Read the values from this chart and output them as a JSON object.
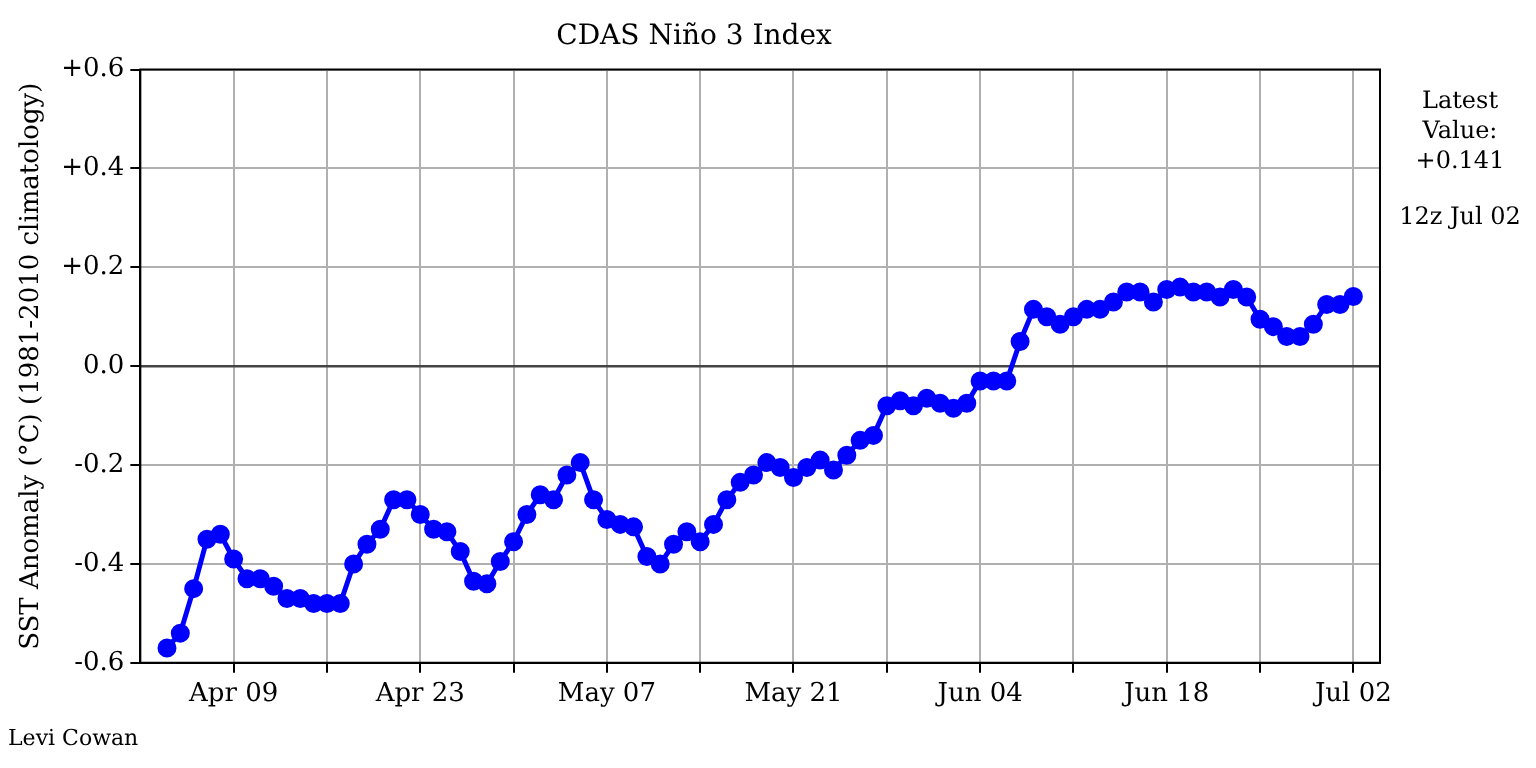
{
  "chart_data": {
    "type": "line",
    "title": "CDAS Niño 3 Index",
    "ylabel": "SST Anomaly (°C) (1981-2010 climatology)",
    "x": [
      "--04-04",
      "--04-05",
      "--04-06",
      "--04-07",
      "--04-08",
      "--04-09",
      "--04-10",
      "--04-11",
      "--04-12",
      "--04-13",
      "--04-14",
      "--04-15",
      "--04-16",
      "--04-17",
      "--04-18",
      "--04-19",
      "--04-20",
      "--04-21",
      "--04-22",
      "--04-23",
      "--04-24",
      "--04-25",
      "--04-26",
      "--04-27",
      "--04-28",
      "--04-29",
      "--04-30",
      "--05-01",
      "--05-02",
      "--05-03",
      "--05-04",
      "--05-05",
      "--05-06",
      "--05-07",
      "--05-08",
      "--05-09",
      "--05-10",
      "--05-11",
      "--05-12",
      "--05-13",
      "--05-14",
      "--05-15",
      "--05-16",
      "--05-17",
      "--05-18",
      "--05-19",
      "--05-20",
      "--05-21",
      "--05-22",
      "--05-23",
      "--05-24",
      "--05-25",
      "--05-26",
      "--05-27",
      "--05-28",
      "--05-29",
      "--05-30",
      "--05-31",
      "--06-01",
      "--06-02",
      "--06-03",
      "--06-04",
      "--06-05",
      "--06-06",
      "--06-07",
      "--06-08",
      "--06-09",
      "--06-10",
      "--06-11",
      "--06-12",
      "--06-13",
      "--06-14",
      "--06-15",
      "--06-16",
      "--06-17",
      "--06-18",
      "--06-19",
      "--06-20",
      "--06-21",
      "--06-22",
      "--06-23",
      "--06-24",
      "--06-25",
      "--06-26",
      "--06-27",
      "--06-28",
      "--06-29",
      "--06-30",
      "--07-01",
      "--07-02"
    ],
    "series": [
      {
        "color": "#0000ff",
        "values": [
          -0.57,
          -0.54,
          -0.45,
          -0.35,
          -0.34,
          -0.39,
          -0.43,
          -0.43,
          -0.445,
          -0.47,
          -0.47,
          -0.48,
          -0.48,
          -0.48,
          -0.4,
          -0.36,
          -0.33,
          -0.27,
          -0.27,
          -0.3,
          -0.33,
          -0.335,
          -0.375,
          -0.435,
          -0.44,
          -0.395,
          -0.355,
          -0.3,
          -0.26,
          -0.27,
          -0.22,
          -0.195,
          -0.27,
          -0.31,
          -0.32,
          -0.325,
          -0.385,
          -0.4,
          -0.36,
          -0.335,
          -0.355,
          -0.32,
          -0.27,
          -0.235,
          -0.22,
          -0.195,
          -0.205,
          -0.225,
          -0.205,
          -0.19,
          -0.21,
          -0.18,
          -0.15,
          -0.14,
          -0.08,
          -0.07,
          -0.08,
          -0.065,
          -0.075,
          -0.085,
          -0.075,
          -0.03,
          -0.03,
          -0.03,
          0.05,
          0.115,
          0.1,
          0.085,
          0.1,
          0.115,
          0.115,
          0.13,
          0.15,
          0.15,
          0.13,
          0.155,
          0.16,
          0.15,
          0.15,
          0.14,
          0.155,
          0.14,
          0.095,
          0.08,
          0.06,
          0.06,
          0.085,
          0.125,
          0.125,
          0.141
        ]
      }
    ],
    "xlim": [
      "--04-02",
      "--07-04"
    ],
    "xticks": [
      {
        "value": "--04-09",
        "label": "Apr 09"
      },
      {
        "value": "--04-16",
        "label": null
      },
      {
        "value": "--04-23",
        "label": "Apr 23"
      },
      {
        "value": "--04-30",
        "label": null
      },
      {
        "value": "--05-07",
        "label": "May 07"
      },
      {
        "value": "--05-14",
        "label": null
      },
      {
        "value": "--05-21",
        "label": "May 21"
      },
      {
        "value": "--05-28",
        "label": null
      },
      {
        "value": "--06-04",
        "label": "Jun 04"
      },
      {
        "value": "--06-11",
        "label": null
      },
      {
        "value": "--06-18",
        "label": "Jun 18"
      },
      {
        "value": "--06-25",
        "label": null
      },
      {
        "value": "--07-02",
        "label": "Jul 02"
      }
    ],
    "ylim": [
      -0.6,
      0.6
    ],
    "yticks": [
      {
        "value": -0.6,
        "label": "-0.6"
      },
      {
        "value": -0.4,
        "label": "-0.4"
      },
      {
        "value": -0.2,
        "label": "-0.2"
      },
      {
        "value": 0,
        "label": "0.0"
      },
      {
        "value": 0.2,
        "label": "+0.2"
      },
      {
        "value": 0.4,
        "label": "+0.4"
      },
      {
        "value": 0.6,
        "label": "+0.6"
      }
    ],
    "ref_lines": [
      {
        "axis": "y",
        "value": 0,
        "color": "#444444"
      }
    ],
    "annotations": [
      "Latest Value: +0.141",
      "12z Jul 02",
      "Levi Cowan"
    ],
    "grid": true,
    "legend": false,
    "marker": "circle",
    "line_style": "solid"
  }
}
